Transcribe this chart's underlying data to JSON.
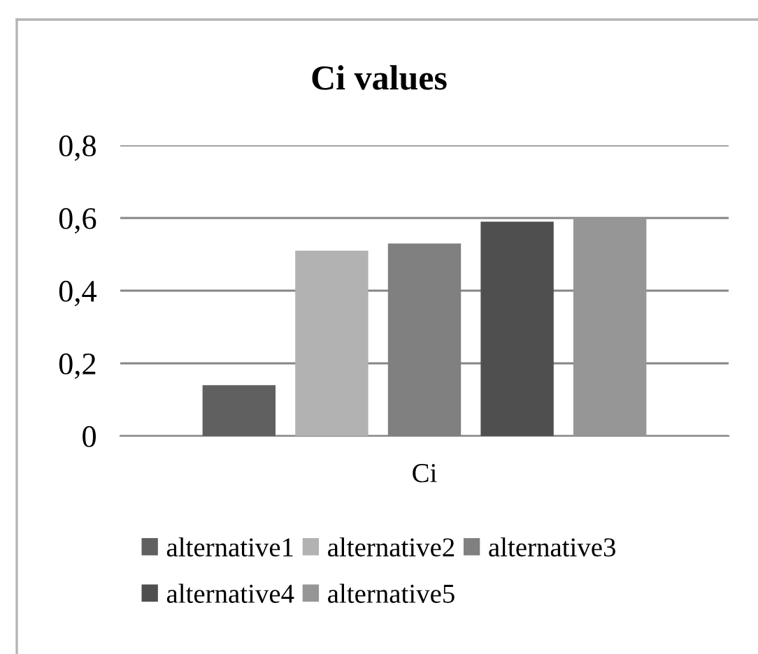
{
  "chart_data": {
    "type": "bar",
    "title": "Ci values",
    "categories": [
      "Ci"
    ],
    "series": [
      {
        "name": "alternative1",
        "color": "#606060",
        "values": [
          0.14
        ]
      },
      {
        "name": "alternative2",
        "color": "#b2b2b2",
        "values": [
          0.51
        ]
      },
      {
        "name": "alternative3",
        "color": "#808080",
        "values": [
          0.53
        ]
      },
      {
        "name": "alternative4",
        "color": "#4f4f4f",
        "values": [
          0.59
        ]
      },
      {
        "name": "alternative5",
        "color": "#969696",
        "values": [
          0.6
        ]
      }
    ],
    "ylim": [
      0,
      0.8
    ],
    "yticks": [
      0,
      {
        "value": 0.2,
        "label": "0,2"
      },
      {
        "value": 0.4,
        "label": "0,4"
      },
      {
        "value": 0.6,
        "label": "0,6"
      },
      {
        "value": 0.8,
        "label": "0,8"
      }
    ],
    "grid": "y",
    "legend": "bottom"
  }
}
